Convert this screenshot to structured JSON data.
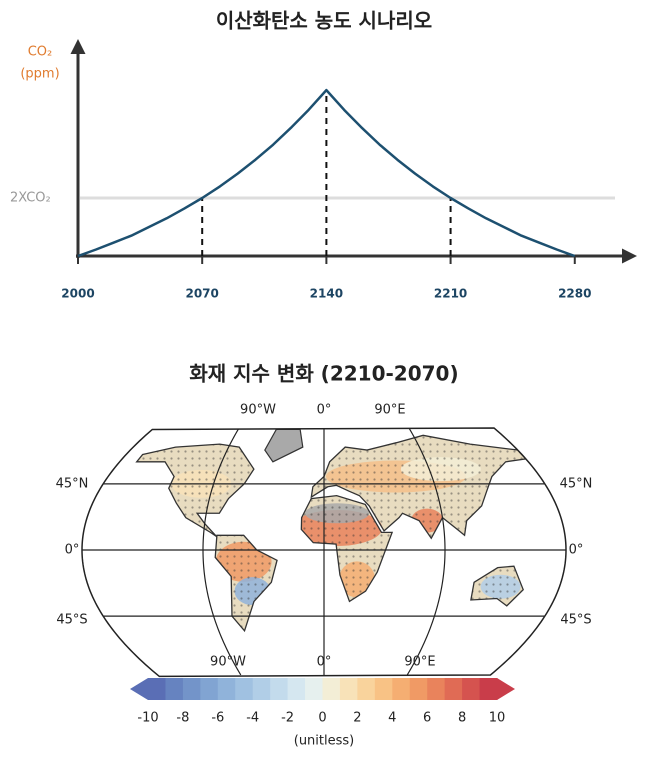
{
  "chart_data": [
    {
      "type": "line",
      "title": "이산화탄소 농도 시나리오",
      "ylabel": [
        "CO₂",
        "(ppm)"
      ],
      "ylabel_color": "#e07b2e",
      "x": [
        2000,
        2010,
        2020,
        2030,
        2040,
        2050,
        2060,
        2070,
        2080,
        2090,
        2100,
        2110,
        2120,
        2130,
        2140,
        2150,
        2160,
        2170,
        2180,
        2190,
        2200,
        2210,
        2220,
        2230,
        2240,
        2250,
        2260,
        2270,
        2280
      ],
      "series": [
        {
          "color": "#1d5070",
          "values": [
            0,
            0.11,
            0.23,
            0.35,
            0.5,
            0.65,
            0.82,
            1.0,
            1.2,
            1.42,
            1.66,
            1.92,
            2.21,
            2.52,
            2.86,
            2.52,
            2.21,
            1.92,
            1.66,
            1.42,
            1.2,
            1.0,
            0.82,
            0.65,
            0.5,
            0.35,
            0.23,
            0.11,
            0
          ]
        }
      ],
      "xlim": [
        2000,
        2310
      ],
      "ylim": [
        0,
        3.7
      ],
      "xticks": [
        2000,
        2070,
        2140,
        2210,
        2280
      ],
      "drop_lines_at": [
        2070,
        2140,
        2210
      ],
      "reference": {
        "value": 1,
        "label": "2XCO₂",
        "color": "#dddddd"
      }
    },
    {
      "type": "map",
      "title": "화재 지수 변화 (2210-2070)",
      "top_labels": [
        "90°W",
        "0°",
        "90°E"
      ],
      "bottom_labels": [
        "90°W",
        "0°",
        "90°E"
      ],
      "left_labels": [
        "45°N",
        "0°",
        "45°S"
      ],
      "right_labels": [
        "45°N",
        "0°",
        "45°S"
      ],
      "colorbar": {
        "lim": [
          -10,
          10
        ],
        "ticks": [
          -10,
          -8,
          -6,
          -4,
          -2,
          0,
          2,
          4,
          6,
          8,
          10
        ],
        "label": "(unitless)",
        "colors": [
          "#5a6eb5",
          "#6683c0",
          "#7394c9",
          "#81a4d2",
          "#90b3da",
          "#a0c1e1",
          "#b1cee7",
          "#c3dbec",
          "#d5e7f0",
          "#e6f0ee",
          "#f3eed6",
          "#f8e2b8",
          "#f9d39c",
          "#f8c285",
          "#f5ae72",
          "#f09a65",
          "#e9835c",
          "#e06b55",
          "#d5534f",
          "#c93d4a"
        ]
      }
    }
  ]
}
